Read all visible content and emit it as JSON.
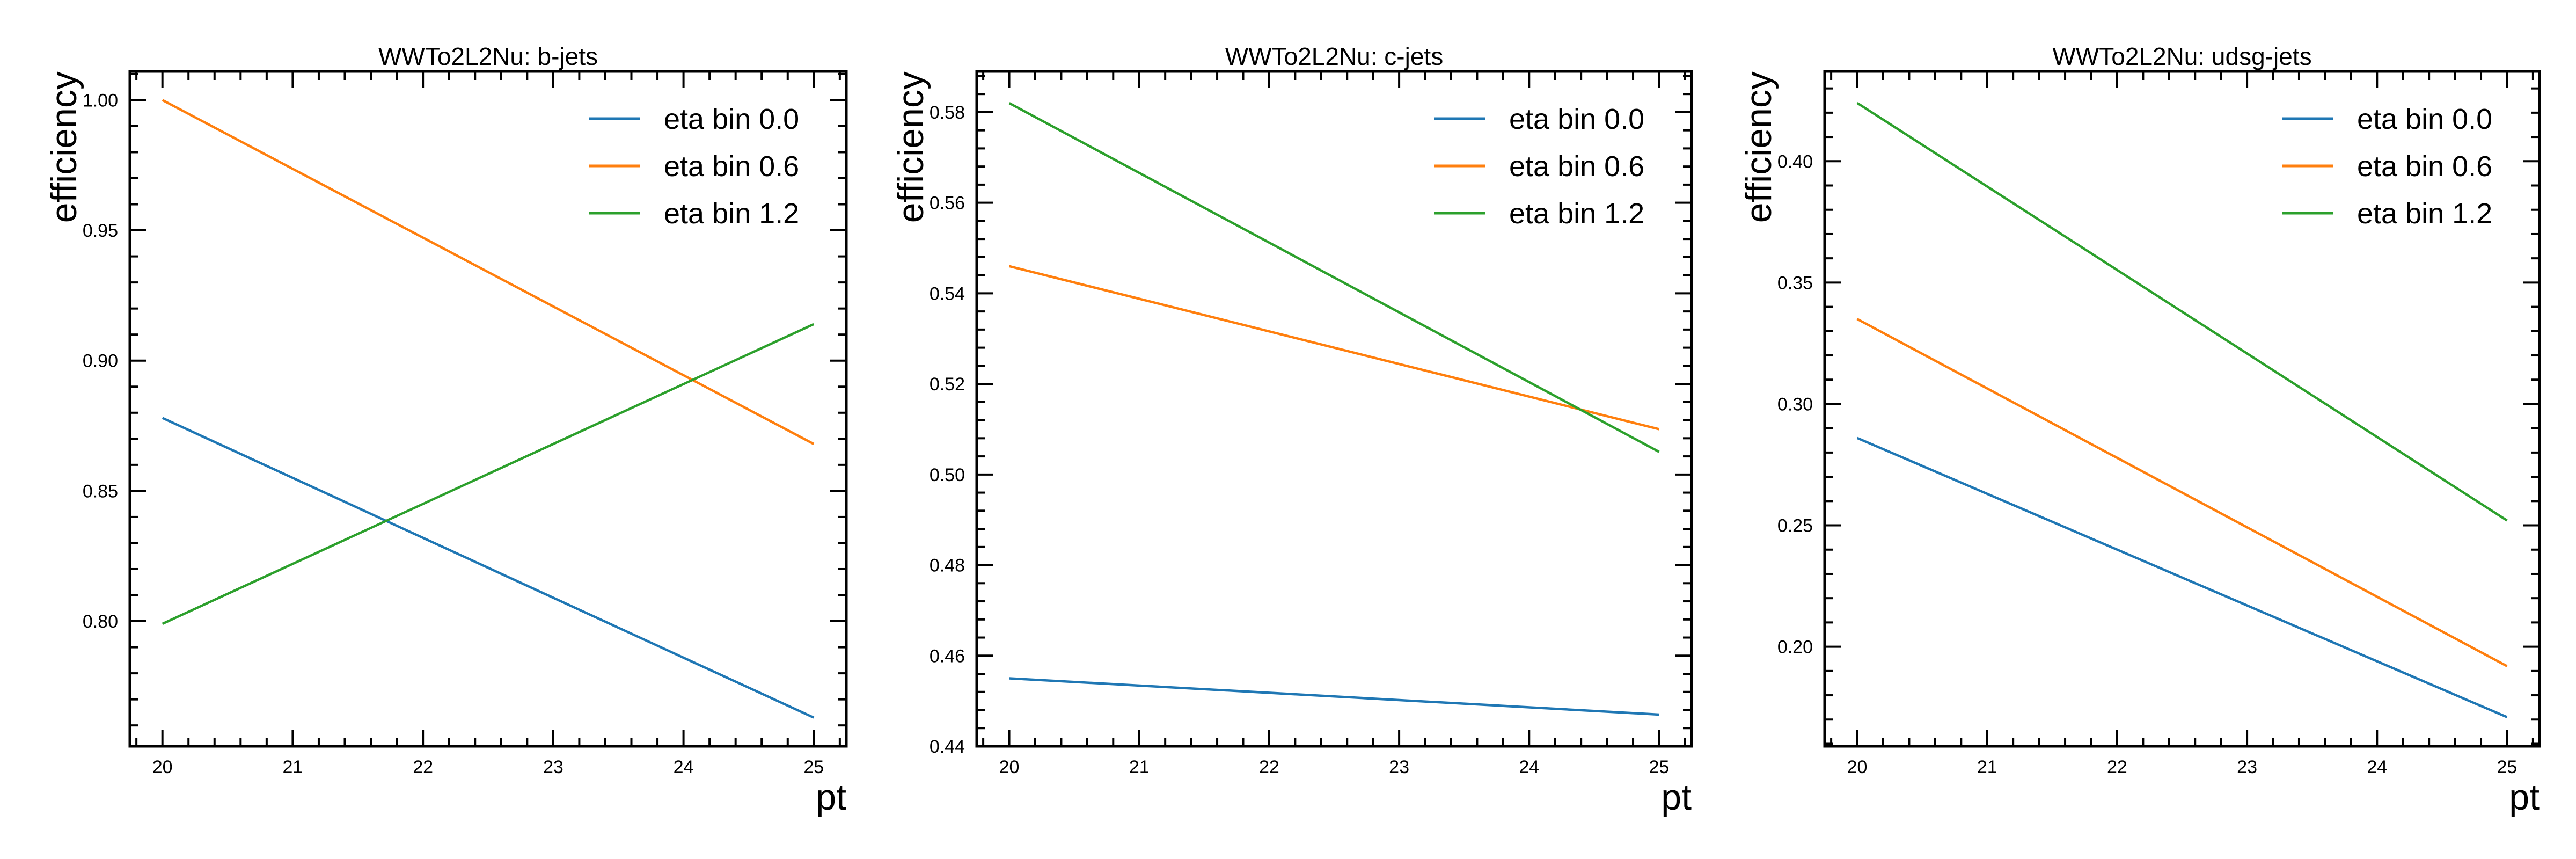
{
  "figure": {
    "colors": {
      "series_0": "#1f77b4",
      "series_1": "#ff7f0e",
      "series_2": "#2ca02c",
      "axes": "#000000",
      "background": "#ffffff"
    }
  },
  "chart_data": [
    {
      "type": "line",
      "title": "WWTo2L2Nu: b-jets",
      "xlabel": "pt",
      "ylabel": "efficiency",
      "xlim": [
        19.75,
        25.25
      ],
      "ylim": [
        0.752,
        1.011
      ],
      "xticks": [
        20,
        21,
        22,
        23,
        24,
        25
      ],
      "xtick_labels": [
        "20",
        "21",
        "22",
        "23",
        "24",
        "25"
      ],
      "yticks": [
        0.8,
        0.85,
        0.9,
        0.95,
        1.0
      ],
      "ytick_labels": [
        "0.80",
        "0.85",
        "0.90",
        "0.95",
        "1.00"
      ],
      "grid": false,
      "legend_position": "top-right",
      "series": [
        {
          "name": "eta bin 0.0",
          "x": [
            20,
            25
          ],
          "values": [
            0.878,
            0.763
          ]
        },
        {
          "name": "eta bin 0.6",
          "x": [
            20,
            25
          ],
          "values": [
            1.0,
            0.868
          ]
        },
        {
          "name": "eta bin 1.2",
          "x": [
            20,
            25
          ],
          "values": [
            0.799,
            0.914
          ]
        }
      ]
    },
    {
      "type": "line",
      "title": "WWTo2L2Nu: c-jets",
      "xlabel": "pt",
      "ylabel": "efficiency",
      "xlim": [
        19.75,
        25.25
      ],
      "ylim": [
        0.44,
        0.589
      ],
      "xticks": [
        20,
        21,
        22,
        23,
        24,
        25
      ],
      "xtick_labels": [
        "20",
        "21",
        "22",
        "23",
        "24",
        "25"
      ],
      "yticks": [
        0.44,
        0.46,
        0.48,
        0.5,
        0.52,
        0.54,
        0.56,
        0.58
      ],
      "ytick_labels": [
        "0.44",
        "0.46",
        "0.48",
        "0.50",
        "0.52",
        "0.54",
        "0.56",
        "0.58"
      ],
      "grid": false,
      "legend_position": "top-right",
      "series": [
        {
          "name": "eta bin 0.0",
          "x": [
            20,
            25
          ],
          "values": [
            0.455,
            0.447
          ]
        },
        {
          "name": "eta bin 0.6",
          "x": [
            20,
            25
          ],
          "values": [
            0.546,
            0.51
          ]
        },
        {
          "name": "eta bin 1.2",
          "x": [
            20,
            25
          ],
          "values": [
            0.582,
            0.505
          ]
        }
      ]
    },
    {
      "type": "line",
      "title": "WWTo2L2Nu: udsg-jets",
      "xlabel": "pt",
      "ylabel": "efficiency",
      "xlim": [
        19.75,
        25.25
      ],
      "ylim": [
        0.159,
        0.437
      ],
      "xticks": [
        20,
        21,
        22,
        23,
        24,
        25
      ],
      "xtick_labels": [
        "20",
        "21",
        "22",
        "23",
        "24",
        "25"
      ],
      "yticks": [
        0.2,
        0.25,
        0.3,
        0.35,
        0.4
      ],
      "ytick_labels": [
        "0.20",
        "0.25",
        "0.30",
        "0.35",
        "0.40"
      ],
      "grid": false,
      "legend_position": "top-right",
      "series": [
        {
          "name": "eta bin 0.0",
          "x": [
            20,
            25
          ],
          "values": [
            0.286,
            0.171
          ]
        },
        {
          "name": "eta bin 0.6",
          "x": [
            20,
            25
          ],
          "values": [
            0.335,
            0.192
          ]
        },
        {
          "name": "eta bin 1.2",
          "x": [
            20,
            25
          ],
          "values": [
            0.424,
            0.252
          ]
        }
      ]
    }
  ]
}
